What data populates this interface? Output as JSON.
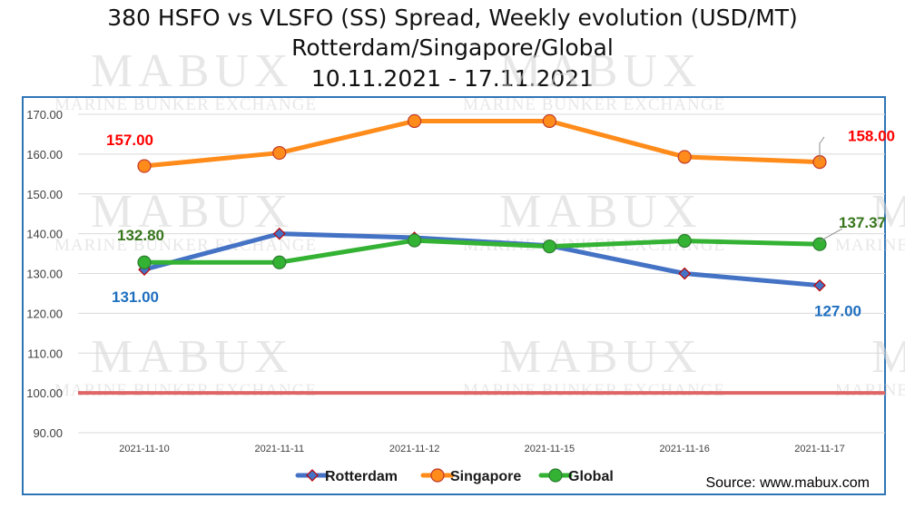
{
  "chart_data": {
    "type": "line",
    "title": "380 HSFO vs VLSFO (SS) Spread, Weekly evolution (USD/MT)",
    "subtitle": "Rotterdam/Singapore/Global",
    "date_range": "10.11.2021 - 17.11.2021",
    "categories": [
      "2021-11-10",
      "2021-11-11",
      "2021-11-12",
      "2021-11-15",
      "2021-11-16",
      "2021-11-17"
    ],
    "ylim": [
      90,
      170
    ],
    "yticks": [
      "90.00",
      "100.00",
      "110.00",
      "120.00",
      "130.00",
      "140.00",
      "150.00",
      "160.00",
      "170.00"
    ],
    "grid": true,
    "legend_position": "bottom",
    "reference_line": {
      "value": 100,
      "color": "#e06666"
    },
    "series": [
      {
        "name": "Rotterdam",
        "color": "#4472c4",
        "marker": "diamond",
        "values": [
          131.0,
          140.0,
          139.0,
          137.0,
          130.0,
          127.0
        ]
      },
      {
        "name": "Singapore",
        "color": "#ff8c1a",
        "marker": "circle",
        "values": [
          157.0,
          160.3,
          168.3,
          168.3,
          159.3,
          158.0
        ]
      },
      {
        "name": "Global",
        "color": "#33b233",
        "marker": "circle",
        "values": [
          132.8,
          132.8,
          138.3,
          136.8,
          138.2,
          137.37
        ]
      }
    ],
    "data_labels": [
      {
        "series": 1,
        "index": 0,
        "text": "157.00",
        "color": "#ff0000"
      },
      {
        "series": 1,
        "index": 5,
        "text": "158.00",
        "color": "#ff0000"
      },
      {
        "series": 2,
        "index": 0,
        "text": "132.80",
        "color": "#38761d"
      },
      {
        "series": 2,
        "index": 5,
        "text": "137.37",
        "color": "#38761d"
      },
      {
        "series": 0,
        "index": 0,
        "text": "131.00",
        "color": "#1f6fbf"
      },
      {
        "series": 0,
        "index": 5,
        "text": "127.00",
        "color": "#1f6fbf"
      }
    ]
  },
  "source": "Source: www.mabux.com",
  "watermark": {
    "logo": "MABUX",
    "tagline": "MARINE BUNKER EXCHANGE"
  }
}
